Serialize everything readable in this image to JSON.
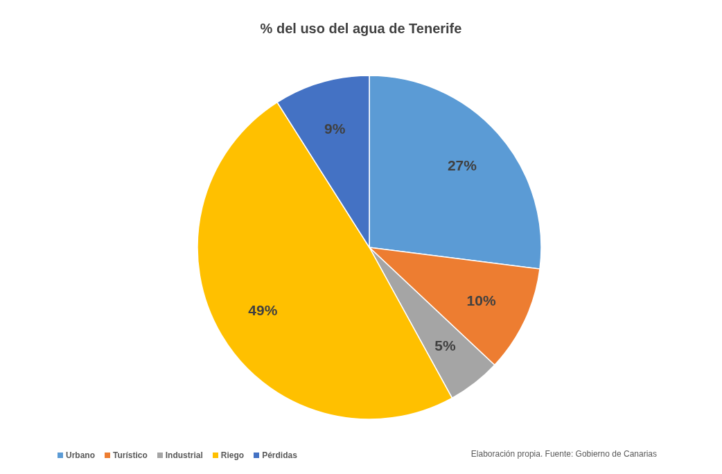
{
  "chart_data": {
    "type": "pie",
    "title": "% del uso del agua de Tenerife",
    "categories": [
      "Urbano",
      "Turístico",
      "Industrial",
      "Riego",
      "Pérdidas"
    ],
    "values": [
      27,
      10,
      5,
      49,
      9
    ],
    "colors": [
      "#5b9bd5",
      "#ed7d31",
      "#a5a5a5",
      "#ffc000",
      "#4472c4"
    ],
    "value_labels": [
      "27%",
      "10%",
      "5%",
      "49%",
      "9%"
    ],
    "legend": "bottom left",
    "annotations": [
      "Elaboración propia. Fuente: Gobierno de Canarias"
    ]
  }
}
